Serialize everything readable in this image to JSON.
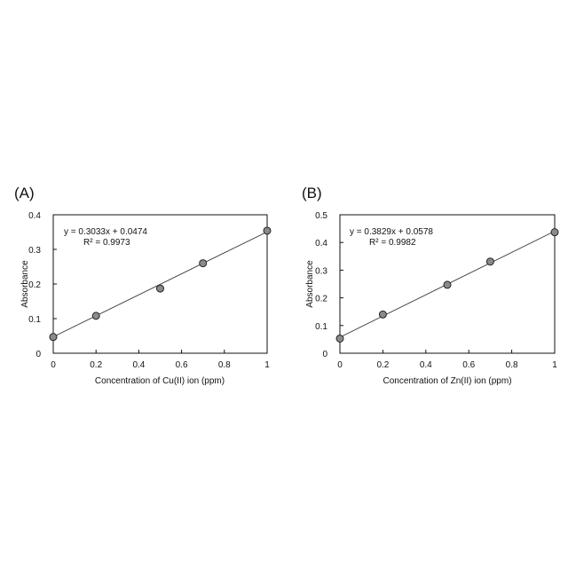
{
  "chart_data": [
    {
      "panel": "(A)",
      "type": "scatter",
      "xlabel": "Concentration of Cu(II) ion (ppm)",
      "ylabel": "Absorbance",
      "xlim": [
        0,
        1
      ],
      "ylim": [
        0,
        0.4
      ],
      "x_ticks": [
        "0",
        "0.2",
        "0.4",
        "0.6",
        "0.8",
        "1"
      ],
      "y_ticks": [
        "0",
        "0.1",
        "0.2",
        "0.3",
        "0.4"
      ],
      "x": [
        0,
        0.2,
        0.5,
        0.7,
        1.0
      ],
      "y": [
        0.047,
        0.108,
        0.187,
        0.26,
        0.354
      ],
      "fit": {
        "slope": 0.3033,
        "intercept": 0.0474
      },
      "equation": "y = 0.3033x + 0.0474",
      "r_squared": "R² = 0.9973",
      "grid": false,
      "marker_color": "#8a8a8a"
    },
    {
      "panel": "(B)",
      "type": "scatter",
      "xlabel": "Concentration of Zn(II) ion (ppm)",
      "ylabel": "Absorbance",
      "xlim": [
        0,
        1
      ],
      "ylim": [
        0,
        0.5
      ],
      "x_ticks": [
        "0",
        "0.2",
        "0.4",
        "0.6",
        "0.8",
        "1"
      ],
      "y_ticks": [
        "0",
        "0.1",
        "0.2",
        "0.3",
        "0.4",
        "0.5"
      ],
      "x": [
        0,
        0.2,
        0.5,
        0.7,
        1.0
      ],
      "y": [
        0.053,
        0.14,
        0.247,
        0.331,
        0.437
      ],
      "fit": {
        "slope": 0.3829,
        "intercept": 0.0578
      },
      "equation": "y = 0.3829x + 0.0578",
      "r_squared": "R² = 0.9982",
      "grid": false,
      "marker_color": "#8a8a8a"
    }
  ]
}
